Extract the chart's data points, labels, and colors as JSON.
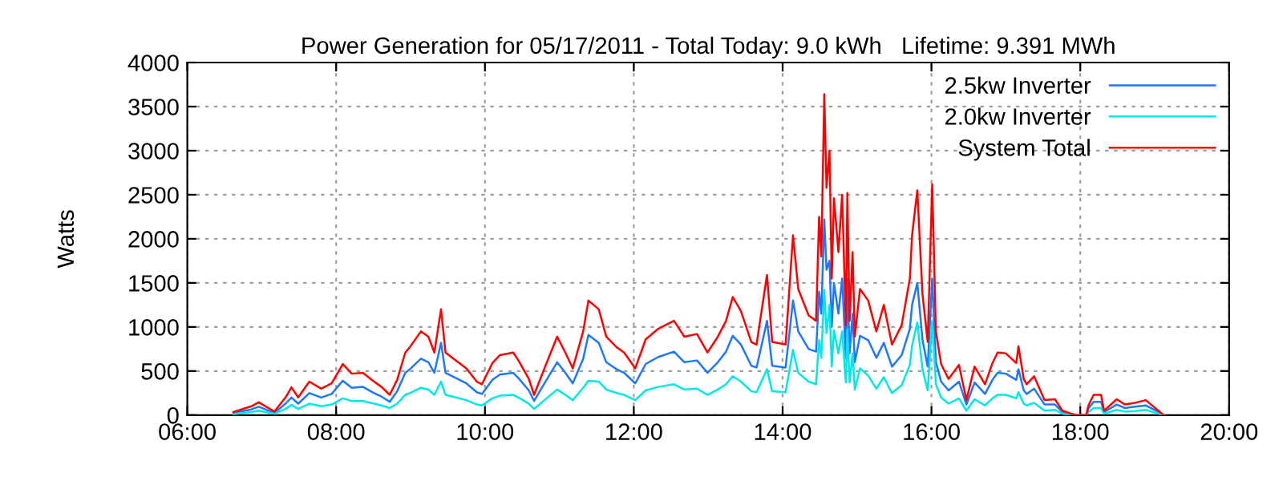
{
  "chart_data": {
    "type": "line",
    "title": "Power Generation for 05/17/2011 - Total Today: 9.0 kWh   Lifetime: 9.391 MWh",
    "ylabel": "Watts",
    "x": [
      6.62,
      6.86,
      6.96,
      7.17,
      7.32,
      7.4,
      7.49,
      7.64,
      7.8,
      7.94,
      8.09,
      8.21,
      8.36,
      8.51,
      8.61,
      8.72,
      8.82,
      8.93,
      8.99,
      9.14,
      9.24,
      9.32,
      9.41,
      9.47,
      9.61,
      9.75,
      9.89,
      9.96,
      10.1,
      10.2,
      10.38,
      10.45,
      10.59,
      10.66,
      10.8,
      10.97,
      11.08,
      11.18,
      11.32,
      11.39,
      11.53,
      11.63,
      11.77,
      11.87,
      12.02,
      12.16,
      12.33,
      12.54,
      12.68,
      12.85,
      12.99,
      13.13,
      13.24,
      13.33,
      13.44,
      13.58,
      13.65,
      13.79,
      13.86,
      14.04,
      14.14,
      14.21,
      14.35,
      14.45,
      14.49,
      14.52,
      14.56,
      14.59,
      14.63,
      14.66,
      14.69,
      14.75,
      14.8,
      14.85,
      14.87,
      14.9,
      14.94,
      14.97,
      15.04,
      15.15,
      15.26,
      15.36,
      15.47,
      15.6,
      15.71,
      15.74,
      15.81,
      15.88,
      15.95,
      16.01,
      16.06,
      16.13,
      16.23,
      16.37,
      16.47,
      16.58,
      16.72,
      16.82,
      16.89,
      17.0,
      17.14,
      17.17,
      17.24,
      17.28,
      17.38,
      17.52,
      17.66,
      17.76,
      17.87,
      17.94,
      18.08,
      18.11,
      18.18,
      18.28,
      18.32,
      18.49,
      18.6,
      18.74,
      18.88,
      19.05,
      19.12
    ],
    "series": [
      {
        "name": "2.5kw Inverter",
        "color": "#1e78ff",
        "values": [
          25,
          65,
          95,
          25,
          130,
          200,
          130,
          250,
          200,
          240,
          390,
          310,
          320,
          250,
          210,
          150,
          270,
          480,
          520,
          640,
          600,
          480,
          820,
          480,
          420,
          360,
          260,
          240,
          400,
          460,
          480,
          420,
          280,
          160,
          360,
          600,
          480,
          360,
          640,
          910,
          820,
          600,
          520,
          480,
          360,
          580,
          660,
          720,
          600,
          620,
          480,
          600,
          720,
          900,
          800,
          560,
          540,
          1070,
          560,
          540,
          1300,
          950,
          750,
          720,
          1400,
          1150,
          2220,
          1650,
          1750,
          1000,
          1500,
          1150,
          1550,
          650,
          1550,
          700,
          1150,
          600,
          900,
          850,
          650,
          820,
          550,
          680,
          980,
          1250,
          1500,
          850,
          550,
          1550,
          600,
          380,
          280,
          380,
          120,
          370,
          240,
          400,
          480,
          470,
          400,
          520,
          280,
          240,
          300,
          120,
          120,
          35,
          15,
          0,
          0,
          75,
          150,
          150,
          35,
          120,
          80,
          95,
          110,
          35,
          0
        ]
      },
      {
        "name": "2.0kw Inverter",
        "color": "#00e8e8",
        "values": [
          10,
          35,
          50,
          15,
          70,
          115,
          70,
          130,
          100,
          120,
          190,
          160,
          160,
          130,
          110,
          80,
          130,
          230,
          250,
          310,
          290,
          230,
          380,
          230,
          200,
          170,
          120,
          110,
          190,
          220,
          230,
          200,
          130,
          70,
          170,
          290,
          230,
          170,
          310,
          390,
          380,
          290,
          250,
          230,
          170,
          280,
          320,
          350,
          290,
          300,
          230,
          290,
          350,
          440,
          380,
          270,
          260,
          520,
          270,
          260,
          740,
          480,
          380,
          350,
          850,
          650,
          1420,
          930,
          1250,
          550,
          960,
          700,
          950,
          370,
          970,
          370,
          700,
          290,
          530,
          450,
          300,
          430,
          250,
          340,
          570,
          790,
          1050,
          520,
          280,
          1070,
          350,
          200,
          130,
          190,
          50,
          180,
          110,
          190,
          230,
          230,
          190,
          260,
          130,
          110,
          140,
          50,
          60,
          15,
          5,
          0,
          0,
          35,
          80,
          80,
          15,
          60,
          40,
          45,
          60,
          15,
          0
        ]
      },
      {
        "name": "System Total",
        "color": "#ff0000",
        "values": [
          35,
          100,
          145,
          40,
          200,
          315,
          200,
          380,
          300,
          360,
          580,
          470,
          480,
          380,
          320,
          230,
          400,
          710,
          770,
          950,
          890,
          710,
          1200,
          710,
          620,
          530,
          380,
          350,
          590,
          680,
          710,
          620,
          410,
          230,
          530,
          890,
          710,
          530,
          950,
          1300,
          1200,
          890,
          770,
          710,
          530,
          860,
          980,
          1070,
          890,
          920,
          710,
          890,
          1070,
          1340,
          1180,
          830,
          800,
          1590,
          830,
          800,
          2040,
          1430,
          1130,
          1070,
          2250,
          1800,
          3640,
          2580,
          3000,
          1550,
          2460,
          1850,
          2500,
          1020,
          2520,
          1070,
          1850,
          890,
          1430,
          1300,
          950,
          1250,
          800,
          1020,
          1550,
          2040,
          2550,
          1370,
          830,
          2620,
          950,
          580,
          410,
          570,
          170,
          550,
          350,
          590,
          710,
          700,
          590,
          780,
          410,
          350,
          440,
          170,
          180,
          50,
          20,
          0,
          0,
          110,
          230,
          230,
          50,
          180,
          120,
          140,
          170,
          50,
          0
        ]
      }
    ],
    "xlim": [
      6,
      20
    ],
    "xticks": [
      {
        "value": 6,
        "label": "06:00"
      },
      {
        "value": 8,
        "label": "08:00"
      },
      {
        "value": 10,
        "label": "10:00"
      },
      {
        "value": 12,
        "label": "12:00"
      },
      {
        "value": 14,
        "label": "14:00"
      },
      {
        "value": 16,
        "label": "16:00"
      },
      {
        "value": 18,
        "label": "18:00"
      },
      {
        "value": 20,
        "label": "20:00"
      }
    ],
    "ylim": [
      0,
      4000
    ],
    "yticks": [
      0,
      500,
      1000,
      1500,
      2000,
      2500,
      3000,
      3500,
      4000
    ],
    "grid": true,
    "legend": "top right",
    "line_style": "solid",
    "marker": "none"
  }
}
